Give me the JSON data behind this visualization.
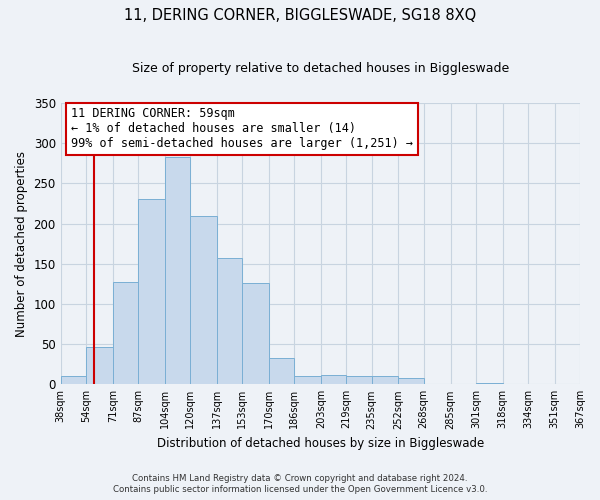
{
  "title": "11, DERING CORNER, BIGGLESWADE, SG18 8XQ",
  "subtitle": "Size of property relative to detached houses in Biggleswade",
  "xlabel": "Distribution of detached houses by size in Biggleswade",
  "ylabel": "Number of detached properties",
  "bins": [
    38,
    54,
    71,
    87,
    104,
    120,
    137,
    153,
    170,
    186,
    203,
    219,
    235,
    252,
    268,
    285,
    301,
    318,
    334,
    351,
    367
  ],
  "bin_labels": [
    "38sqm",
    "54sqm",
    "71sqm",
    "87sqm",
    "104sqm",
    "120sqm",
    "137sqm",
    "153sqm",
    "170sqm",
    "186sqm",
    "203sqm",
    "219sqm",
    "235sqm",
    "252sqm",
    "268sqm",
    "285sqm",
    "301sqm",
    "318sqm",
    "334sqm",
    "351sqm",
    "367sqm"
  ],
  "bar_heights": [
    10,
    46,
    127,
    231,
    283,
    210,
    157,
    126,
    33,
    10,
    12,
    10,
    10,
    8,
    0,
    0,
    2,
    0,
    0,
    1
  ],
  "bar_color": "#c8d9ec",
  "bar_edge_color": "#7aafd4",
  "vline_x": 59,
  "vline_color": "#cc0000",
  "ylim": [
    0,
    350
  ],
  "yticks": [
    0,
    50,
    100,
    150,
    200,
    250,
    300,
    350
  ],
  "annotation_line0": "11 DERING CORNER: 59sqm",
  "annotation_line1": "← 1% of detached houses are smaller (14)",
  "annotation_line2": "99% of semi-detached houses are larger (1,251) →",
  "annotation_box_color": "#ffffff",
  "annotation_box_edge": "#cc0000",
  "footer_line1": "Contains HM Land Registry data © Crown copyright and database right 2024.",
  "footer_line2": "Contains public sector information licensed under the Open Government Licence v3.0.",
  "bg_color": "#eef2f7",
  "plot_bg_color": "#eef2f7",
  "grid_color": "#c8d4e0"
}
